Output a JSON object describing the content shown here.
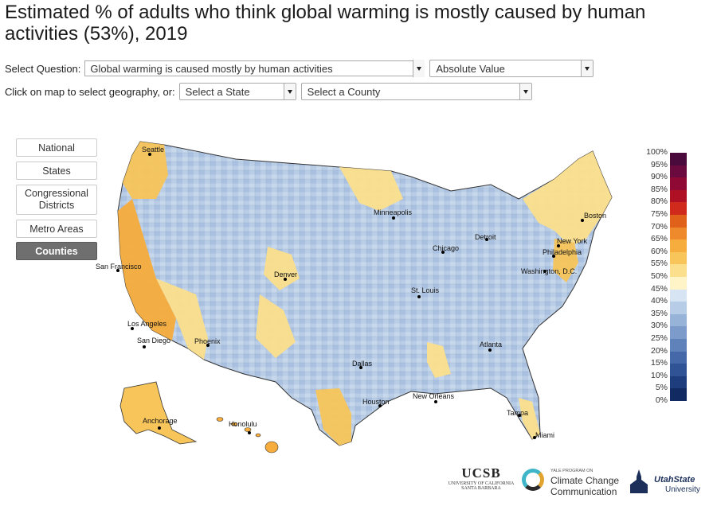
{
  "title": "Estimated % of adults who think global warming is mostly caused by human activities (53%), 2019",
  "controls": {
    "question_label": "Select Question:",
    "question_value": "Global warming is caused mostly by human activities",
    "measure_value": "Absolute Value",
    "geo_prompt": "Click on map to select geography, or:",
    "state_value": "Select a State",
    "county_value": "Select a County"
  },
  "geography_buttons": [
    "National",
    "States",
    "Congressional Districts",
    "Metro Areas",
    "Counties"
  ],
  "active_geography": "Counties",
  "legend": {
    "ticks": [
      "100%",
      "95%",
      "90%",
      "85%",
      "80%",
      "75%",
      "70%",
      "65%",
      "60%",
      "55%",
      "50%",
      "45%",
      "40%",
      "35%",
      "30%",
      "25%",
      "20%",
      "15%",
      "10%",
      "5%",
      "0%"
    ],
    "colors": [
      "#4a0a3c",
      "#6a0a3e",
      "#8e0a35",
      "#b01024",
      "#cf2a1b",
      "#e0611a",
      "#ef8a2c",
      "#f6ad3d",
      "#f7c55a",
      "#fbdf8c",
      "#fff3c8",
      "#d7e4f4",
      "#b7cce6",
      "#98b3d8",
      "#7c9bca",
      "#5f82bb",
      "#4569a8",
      "#2f5394",
      "#1e3d7c",
      "#122a62"
    ]
  },
  "cities": [
    "Seattle",
    "Minneapolis",
    "Boston",
    "Detroit",
    "Chicago",
    "New York",
    "Philadelphia",
    "Washington, D.C.",
    "San Francisco",
    "Denver",
    "St. Louis",
    "Los Angeles",
    "San Diego",
    "Phoenix",
    "Atlanta",
    "Dallas",
    "New Orleans",
    "Houston",
    "Tampa",
    "Miami",
    "Anchorage",
    "Honolulu"
  ],
  "logos": {
    "ucsb_main": "UCSB",
    "ucsb_sub1": "UNIVERSITY OF CALIFORNIA",
    "ucsb_sub2": "SANTA BARBARA",
    "yale_small": "YALE PROGRAM ON",
    "yale_line1": "Climate Change",
    "yale_line2": "Communication",
    "utah_line1": "UtahState",
    "utah_line2": "University"
  }
}
